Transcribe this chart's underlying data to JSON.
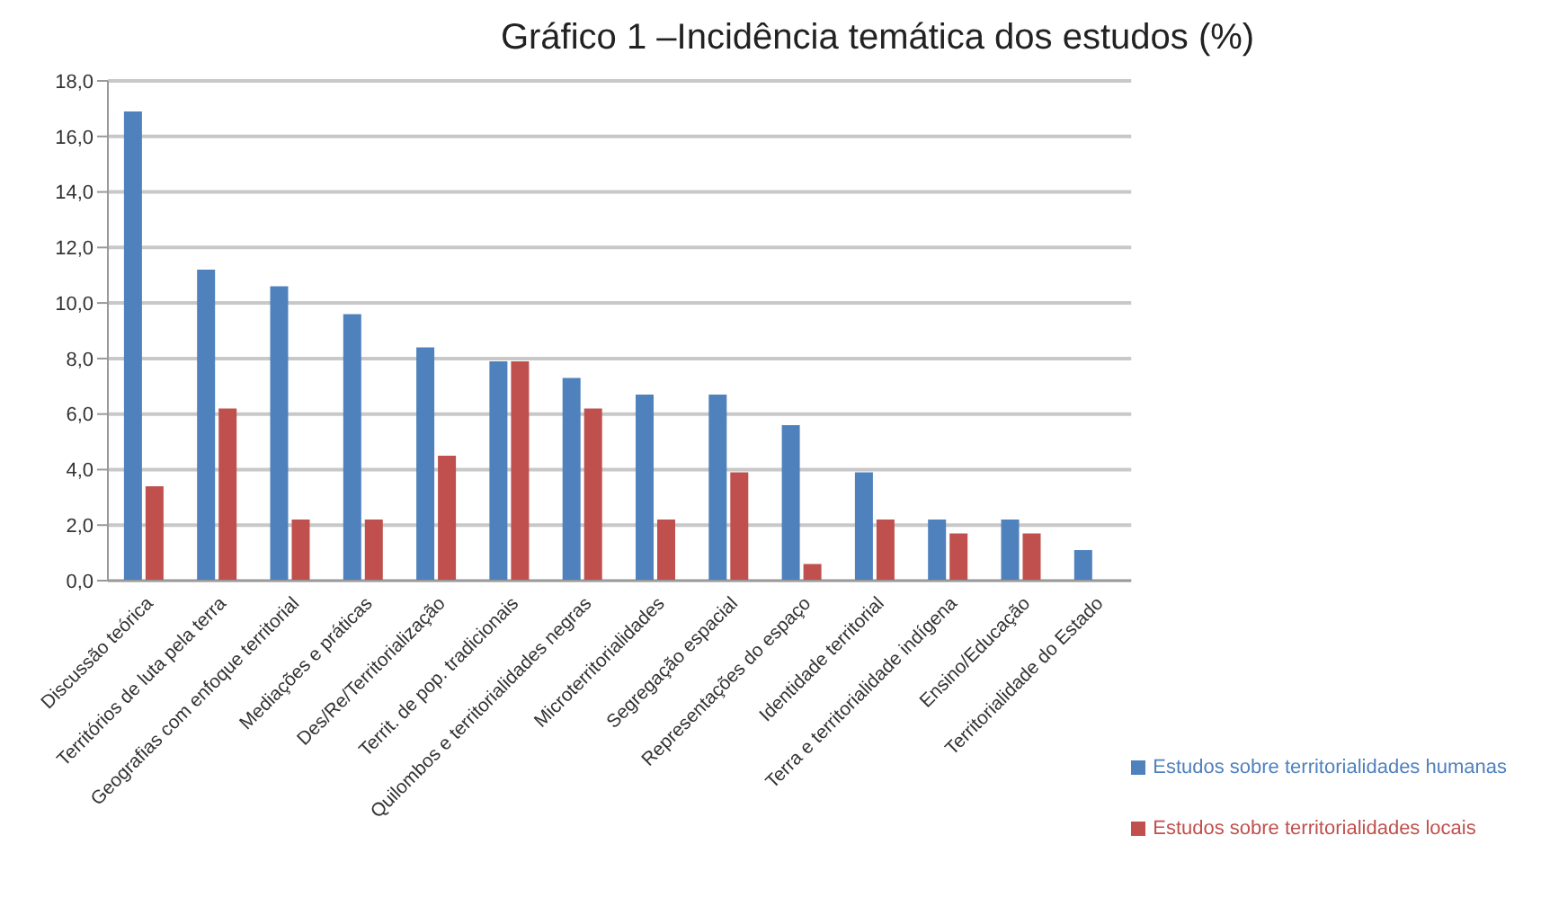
{
  "chart_data": {
    "type": "bar",
    "title": "Gráfico 1 –Incidência temática dos estudos (%)",
    "categories": [
      "Discussão teórica",
      "Territórios de luta pela terra",
      "Geografias com enfoque territorial",
      "Mediações e práticas",
      "Des/Re/Territorialização",
      "Territ. de pop. tradicionais",
      "Quilombos e territorialidades negras",
      "Microterritorialidades",
      "Segregação espacial",
      "Representações do espaço",
      "Identidade territorial",
      "Terra e territorialidade indígena",
      "Ensino/Educação",
      "Territorialidade do Estado"
    ],
    "series": [
      {
        "name": "Estudos sobre territorialidades  humanas",
        "color": "#4f81bd",
        "values": [
          16.9,
          11.2,
          10.6,
          9.6,
          8.4,
          7.9,
          7.3,
          6.7,
          6.7,
          5.6,
          3.9,
          2.2,
          2.2,
          1.1
        ]
      },
      {
        "name": "Estudos sobre territorialidades  locais",
        "color": "#c0504d",
        "values": [
          3.4,
          6.2,
          2.2,
          2.2,
          4.5,
          7.9,
          6.2,
          2.2,
          3.9,
          0.6,
          2.2,
          1.7,
          1.7,
          0
        ]
      }
    ],
    "ylim": [
      0,
      18
    ],
    "yticks": [
      {
        "value": 0,
        "label": "0,0"
      },
      {
        "value": 2,
        "label": "2,0"
      },
      {
        "value": 4,
        "label": "4,0"
      },
      {
        "value": 6,
        "label": "6,0"
      },
      {
        "value": 8,
        "label": "8,0"
      },
      {
        "value": 10,
        "label": "10,0"
      },
      {
        "value": 12,
        "label": "12,0"
      },
      {
        "value": 14,
        "label": "14,0"
      },
      {
        "value": 16,
        "label": "16,0"
      },
      {
        "value": 18,
        "label": "18,0"
      }
    ],
    "grid": "y",
    "legend": "bottom right"
  }
}
